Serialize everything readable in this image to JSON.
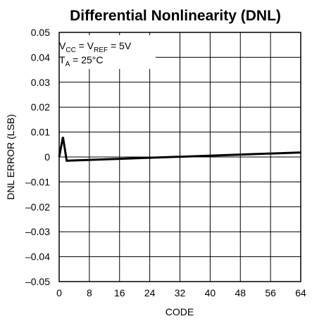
{
  "chart_data": {
    "type": "line",
    "title": "Differential Nonlinearity (DNL)",
    "xlabel": "CODE",
    "ylabel": "DNL ERROR (LSB)",
    "xlim": [
      0,
      64
    ],
    "ylim": [
      -0.05,
      0.05
    ],
    "x_ticks": [
      "0",
      "8",
      "16",
      "24",
      "32",
      "40",
      "48",
      "56",
      "64"
    ],
    "y_ticks": [
      "0.05",
      "0.04",
      "0.03",
      "0.02",
      "0.01",
      "0",
      "–0.01",
      "–0.02",
      "–0.03",
      "–0.04",
      "–0.05"
    ],
    "grid": true,
    "series": [
      {
        "x": [
          0,
          1,
          2,
          64
        ],
        "y": [
          0.0,
          0.008,
          -0.0015,
          0.0018
        ]
      }
    ],
    "annotation": {
      "line1": {
        "prefix": "V",
        "sub1": "CC",
        "mid": " = V",
        "sub2": "REF",
        "suffix": " = 5V"
      },
      "line2": {
        "prefix": "T",
        "sub1": "A",
        "suffix": " = 25°C"
      }
    }
  }
}
